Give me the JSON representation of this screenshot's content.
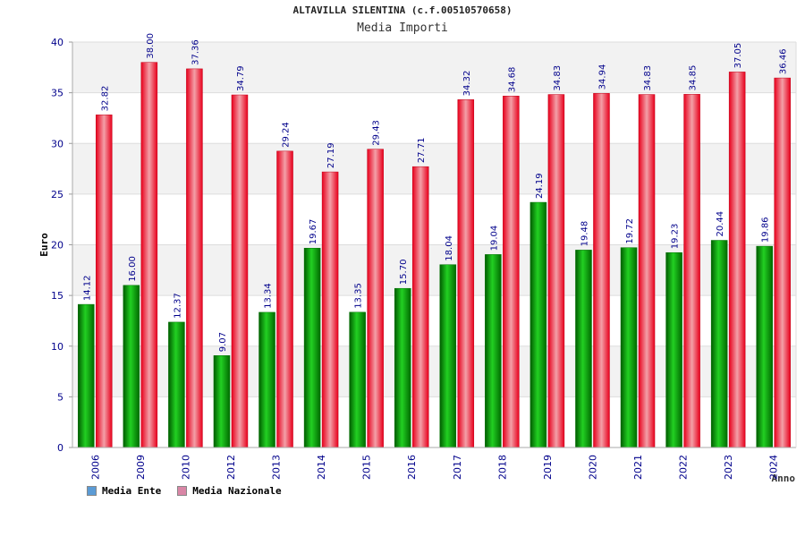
{
  "chart_data": {
    "type": "bar",
    "title": "ALTAVILLA SILENTINA (c.f.00510570658)",
    "subtitle": "Media Importi",
    "xlabel": "Anno",
    "ylabel": "Euro",
    "ylim": [
      0,
      40
    ],
    "yticks": [
      0,
      5,
      10,
      15,
      20,
      25,
      30,
      35,
      40
    ],
    "grid": true,
    "legend_position": "bottom-left",
    "categories": [
      "2006",
      "2009",
      "2010",
      "2012",
      "2013",
      "2014",
      "2015",
      "2016",
      "2017",
      "2018",
      "2019",
      "2020",
      "2021",
      "2022",
      "2023",
      "2024"
    ],
    "series": [
      {
        "name": "Media Ente",
        "color": "#00b000",
        "legend_color": "#5b9bd5",
        "values": [
          14.12,
          16.0,
          12.37,
          9.07,
          13.34,
          19.67,
          13.35,
          15.7,
          18.04,
          19.04,
          24.19,
          19.48,
          19.72,
          19.23,
          20.44,
          19.86
        ],
        "labels": [
          "14.12",
          "16.00",
          "12.37",
          "9.07",
          "13.34",
          "19.67",
          "13.35",
          "15.70",
          "18.04",
          "19.04",
          "24.19",
          "19.48",
          "19.72",
          "19.23",
          "20.44",
          "19.86"
        ]
      },
      {
        "name": "Media Nazionale",
        "color": "#e8001c",
        "legend_color": "#d986a6",
        "values": [
          32.82,
          38.0,
          37.36,
          34.79,
          29.24,
          27.19,
          29.43,
          27.71,
          34.32,
          34.68,
          34.83,
          34.94,
          34.83,
          34.85,
          37.05,
          36.46
        ],
        "labels": [
          "32.82",
          "38.00",
          "37.36",
          "34.79",
          "29.24",
          "27.19",
          "29.43",
          "27.71",
          "34.32",
          "34.68",
          "34.83",
          "34.94",
          "34.83",
          "34.85",
          "37.05",
          "36.46"
        ]
      }
    ]
  }
}
